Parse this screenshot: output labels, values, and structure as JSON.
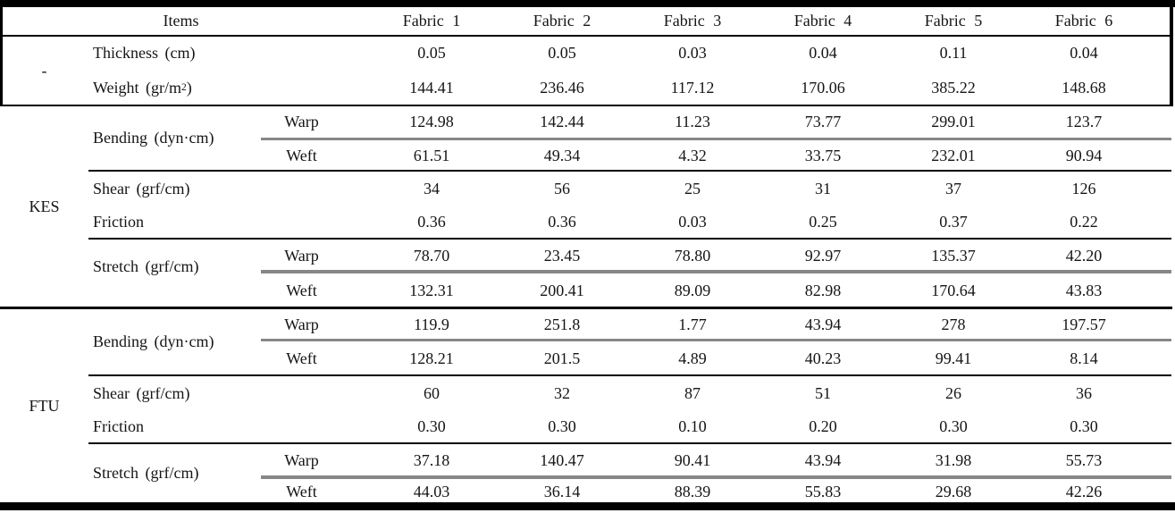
{
  "colors": {
    "rule_dark": "#000000",
    "rule_gray": "#878787"
  },
  "table": {
    "header": {
      "items": "Items",
      "fabrics": [
        "Fabric 1",
        "Fabric 2",
        "Fabric 3",
        "Fabric 4",
        "Fabric 5",
        "Fabric 6"
      ]
    },
    "sections": [
      {
        "group": "-",
        "rows": [
          {
            "label": "Thickness (cm)",
            "values": [
              "0.05",
              "0.05",
              "0.03",
              "0.04",
              "0.11",
              "0.04"
            ]
          },
          {
            "label_pre": "Weight (gr/m",
            "label_sup": "2",
            "label_post": ")",
            "values": [
              "144.41",
              "236.46",
              "117.12",
              "170.06",
              "385.22",
              "148.68"
            ]
          }
        ]
      },
      {
        "group": "KES",
        "bending": {
          "label": "Bending (dyn·cm)",
          "warp_label": "Warp",
          "weft_label": "Weft",
          "warp": [
            "124.98",
            "142.44",
            "11.23",
            "73.77",
            "299.01",
            "123.7"
          ],
          "weft": [
            "61.51",
            "49.34",
            "4.32",
            "33.75",
            "232.01",
            "90.94"
          ]
        },
        "shear": {
          "label": "Shear (grf/cm)",
          "values": [
            "34",
            "56",
            "25",
            "31",
            "37",
            "126"
          ]
        },
        "friction": {
          "label": "Friction",
          "values": [
            "0.36",
            "0.36",
            "0.03",
            "0.25",
            "0.37",
            "0.22"
          ]
        },
        "stretch": {
          "label": "Stretch (grf/cm)",
          "warp_label": "Warp",
          "weft_label": "Weft",
          "warp": [
            "78.70",
            "23.45",
            "78.80",
            "92.97",
            "135.37",
            "42.20"
          ],
          "weft": [
            "132.31",
            "200.41",
            "89.09",
            "82.98",
            "170.64",
            "43.83"
          ]
        }
      },
      {
        "group": "FTU",
        "bending": {
          "label": "Bending (dyn·cm)",
          "warp_label": "Warp",
          "weft_label": "Weft",
          "warp": [
            "119.9",
            "251.8",
            "1.77",
            "43.94",
            "278",
            "197.57"
          ],
          "weft": [
            "128.21",
            "201.5",
            "4.89",
            "40.23",
            "99.41",
            "8.14"
          ]
        },
        "shear": {
          "label": "Shear (grf/cm)",
          "values": [
            "60",
            "32",
            "87",
            "51",
            "26",
            "36"
          ]
        },
        "friction": {
          "label": "Friction",
          "values": [
            "0.30",
            "0.30",
            "0.10",
            "0.20",
            "0.30",
            "0.30"
          ]
        },
        "stretch": {
          "label": "Stretch (grf/cm)",
          "warp_label": "Warp",
          "weft_label": "Weft",
          "warp": [
            "37.18",
            "140.47",
            "90.41",
            "43.94",
            "31.98",
            "55.73"
          ],
          "weft": [
            "44.03",
            "36.14",
            "88.39",
            "55.83",
            "29.68",
            "42.26"
          ]
        }
      }
    ]
  }
}
